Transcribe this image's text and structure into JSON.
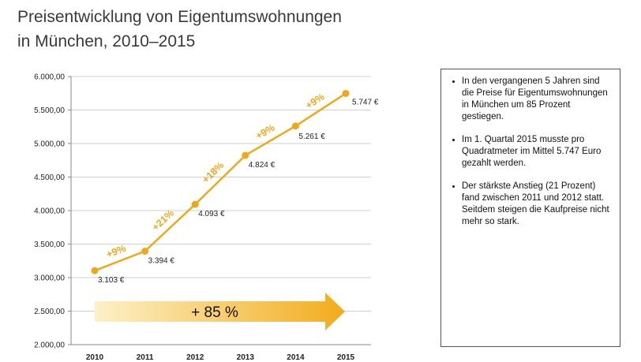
{
  "title": {
    "line1": "Preisentwicklung von Eigentumswohnungen",
    "line2": "in München, 2010–2015"
  },
  "colors": {
    "line": "#f0a818",
    "marker": "#f0a818",
    "growth_label": "#f0a818",
    "arrow_start": "#fdf1c8",
    "arrow_end": "#f2ac1c",
    "grid": "#cfcfcf"
  },
  "chart_data": {
    "type": "line",
    "categories": [
      "2010",
      "2011",
      "2012",
      "2013",
      "2014",
      "2015"
    ],
    "values": [
      3103,
      3394,
      4093,
      4824,
      5261,
      5747
    ],
    "value_labels": [
      "3.103 €",
      "3.394 €",
      "4.093 €",
      "4.824 €",
      "5.261 €",
      "5.747 €"
    ],
    "growth_labels": [
      "+9%",
      "+21%",
      "+18%",
      "+9%",
      "+9%"
    ],
    "y_ticks": [
      2000,
      2500,
      3000,
      3500,
      4000,
      4500,
      5000,
      5500,
      6000
    ],
    "y_tick_labels": [
      "2.000,00",
      "2.500,00",
      "3.000,00",
      "3.500,00",
      "4.000,00",
      "4.500,00",
      "5.000,00",
      "5.500,00",
      "6.000,00"
    ],
    "ylim": [
      2000,
      6000
    ],
    "grid": true,
    "annotation": "+ 85 %"
  },
  "infobox": {
    "items": [
      "In den vergangenen 5 Jahren sind die Preise für Eigentumswohnungen in München um 85 Prozent gestiegen.",
      "Im 1. Quartal 2015 musste pro Quadratmeter im Mittel 5.747 Euro gezahlt werden.",
      "Der stärkste Anstieg (21 Prozent) fand zwischen 2011 und 2012 statt. Seitdem steigen die Kaufpreise nicht mehr so stark."
    ]
  }
}
